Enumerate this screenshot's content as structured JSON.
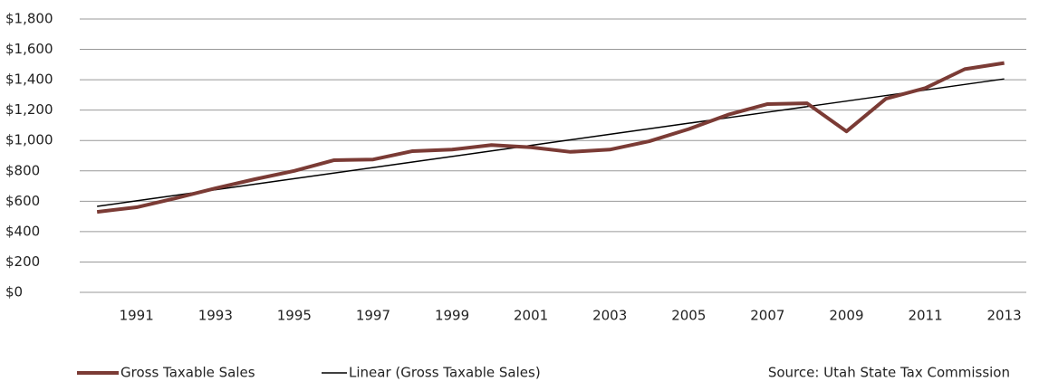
{
  "chart_data": {
    "type": "line",
    "categories": [
      null,
      "1991",
      null,
      "1993",
      null,
      "1995",
      null,
      "1997",
      null,
      "1999",
      null,
      "2001",
      null,
      "2003",
      null,
      "2005",
      null,
      "2007",
      null,
      "2009",
      null,
      "2011",
      null,
      "2013"
    ],
    "series": [
      {
        "name": "Gross Taxable Sales",
        "color": "#7b3b35",
        "values": [
          530,
          560,
          620,
          685,
          745,
          800,
          870,
          875,
          930,
          940,
          970,
          955,
          925,
          940,
          995,
          1075,
          1170,
          1240,
          1245,
          1060,
          1275,
          1345,
          1470,
          1510
        ]
      },
      {
        "name": "Linear (Gross Taxable Sales)",
        "color": "#000000",
        "values": [
          566,
          602.5,
          639,
          675.5,
          712,
          748.5,
          785,
          821.5,
          858,
          894.5,
          931,
          967.5,
          1004,
          1040.5,
          1077,
          1113.5,
          1150,
          1186.5,
          1223,
          1259.5,
          1296,
          1332.5,
          1369,
          1405.5
        ]
      }
    ],
    "ylim": [
      0,
      1800
    ],
    "yticks": [
      {
        "value": 0,
        "label": "$0"
      },
      {
        "value": 200,
        "label": "$200"
      },
      {
        "value": 400,
        "label": "$400"
      },
      {
        "value": 600,
        "label": "$600"
      },
      {
        "value": 800,
        "label": "$800"
      },
      {
        "value": 1000,
        "label": "$1,000"
      },
      {
        "value": 1200,
        "label": "$1,200"
      },
      {
        "value": 1400,
        "label": "$1,400"
      },
      {
        "value": 1600,
        "label": "$1,600"
      },
      {
        "value": 1800,
        "label": "$1,800"
      }
    ],
    "grid": true,
    "source": "Source: Utah State Tax Commission"
  }
}
